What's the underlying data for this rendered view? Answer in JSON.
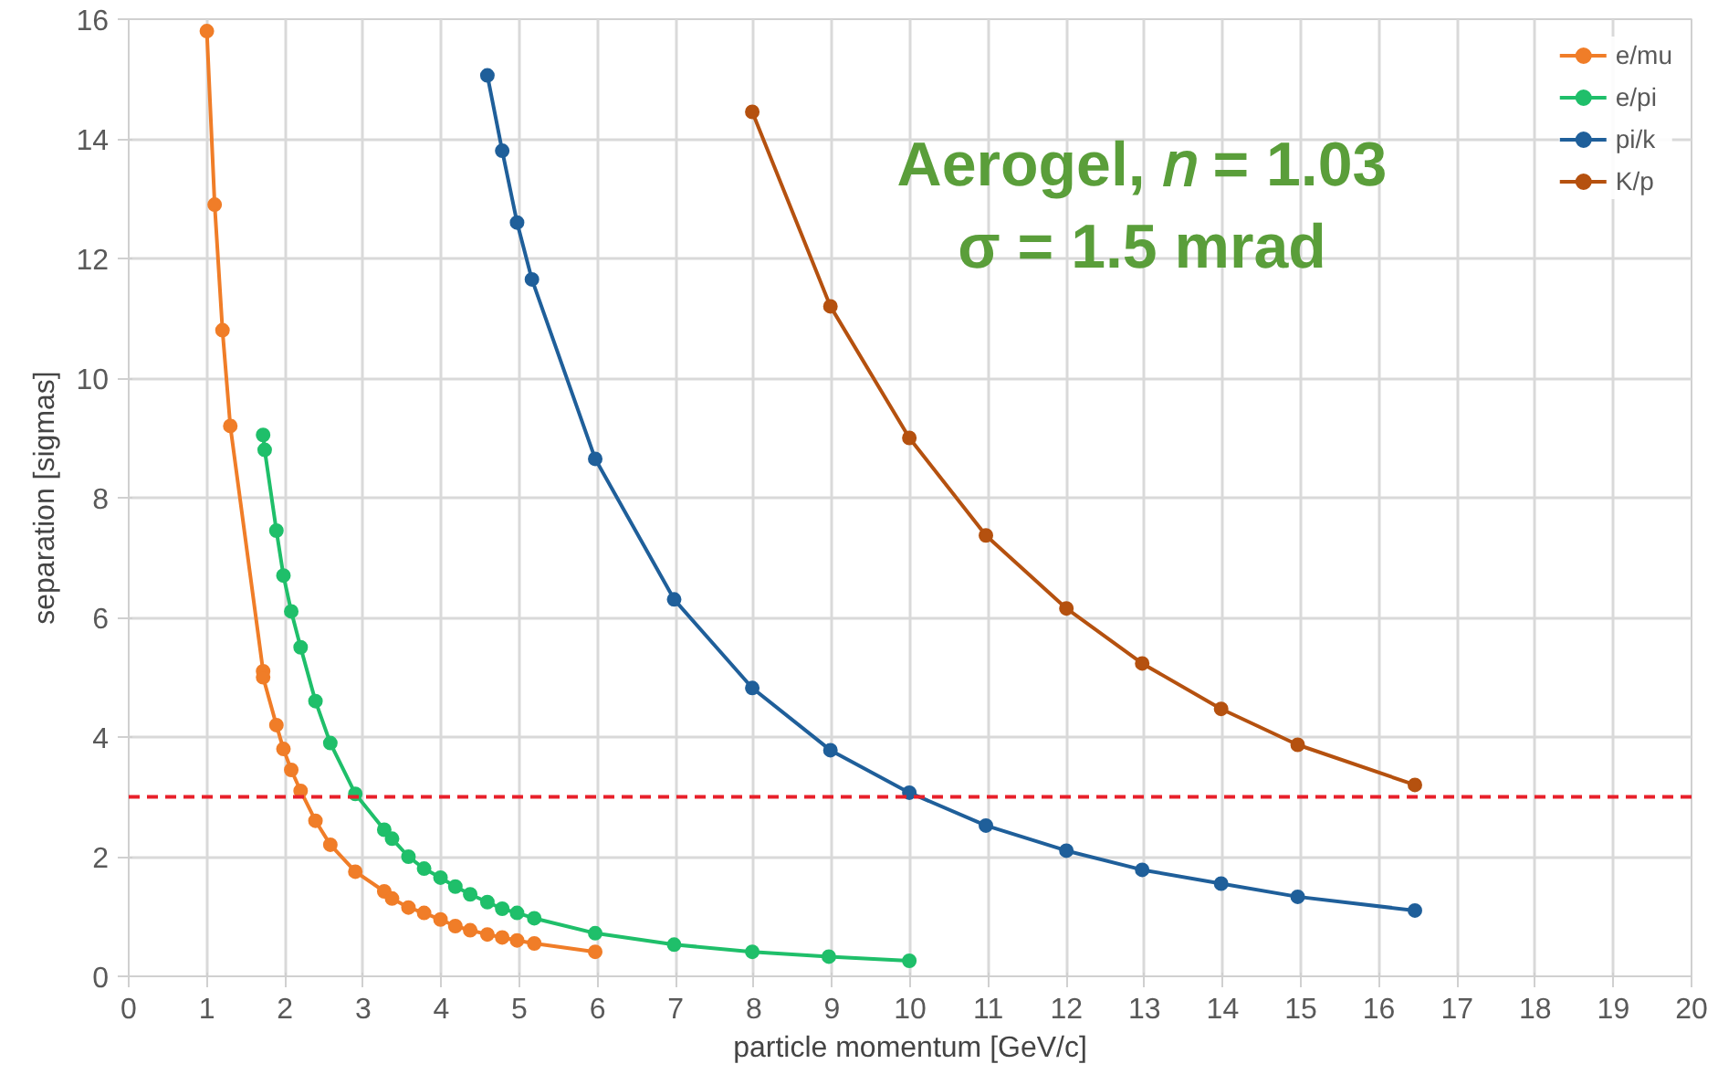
{
  "chart_data": {
    "type": "line",
    "xlabel": "particle momentum [GeV/c]",
    "ylabel": "separation [sigmas]",
    "xlim": [
      0,
      20
    ],
    "ylim": [
      0,
      16
    ],
    "xticks": [
      0,
      1,
      2,
      3,
      4,
      5,
      6,
      7,
      8,
      9,
      10,
      11,
      12,
      13,
      14,
      15,
      16,
      17,
      18,
      19,
      20
    ],
    "yticks": [
      0,
      2,
      4,
      6,
      8,
      10,
      12,
      14,
      16
    ],
    "grid": true,
    "legend": "top right",
    "marker": "circle",
    "line_style": "solid",
    "series": [
      {
        "name": "e/mu",
        "color": "#f07d28",
        "x": [
          1.0,
          1.1,
          1.2,
          1.3,
          1.72,
          1.72,
          1.89,
          1.98,
          2.08,
          2.2,
          2.39,
          2.58,
          2.9,
          3.27,
          3.37,
          3.58,
          3.78,
          3.99,
          4.18,
          4.37,
          4.59,
          4.78,
          4.97,
          5.19,
          5.97
        ],
        "values": [
          15.8,
          12.9,
          10.8,
          9.2,
          5.1,
          5.0,
          4.2,
          3.8,
          3.45,
          3.1,
          2.6,
          2.2,
          1.75,
          1.42,
          1.3,
          1.15,
          1.06,
          0.95,
          0.84,
          0.77,
          0.7,
          0.65,
          0.6,
          0.55,
          0.41
        ]
      },
      {
        "name": "e/pi",
        "color": "#1fbf6a",
        "x": [
          1.72,
          1.74,
          1.89,
          1.98,
          2.08,
          2.2,
          2.39,
          2.58,
          2.9,
          3.27,
          3.37,
          3.58,
          3.78,
          3.99,
          4.18,
          4.37,
          4.59,
          4.78,
          4.97,
          5.19,
          5.97,
          6.98,
          7.98,
          8.96,
          9.99
        ],
        "values": [
          9.05,
          8.8,
          7.45,
          6.7,
          6.1,
          5.5,
          4.6,
          3.9,
          3.05,
          2.45,
          2.3,
          2.0,
          1.8,
          1.65,
          1.5,
          1.37,
          1.24,
          1.13,
          1.06,
          0.97,
          0.72,
          0.53,
          0.41,
          0.33,
          0.26
        ]
      },
      {
        "name": "pi/k",
        "color": "#1f5f9a",
        "x": [
          4.59,
          4.78,
          4.97,
          5.16,
          5.97,
          6.98,
          7.98,
          8.98,
          9.99,
          10.97,
          12.0,
          12.97,
          13.98,
          14.96,
          16.46
        ],
        "values": [
          15.06,
          13.8,
          12.6,
          11.65,
          8.65,
          6.3,
          4.82,
          3.78,
          3.07,
          2.52,
          2.1,
          1.78,
          1.55,
          1.33,
          1.1
        ]
      },
      {
        "name": "K/p",
        "color": "#b5510f",
        "x": [
          7.98,
          8.98,
          9.99,
          10.97,
          12.0,
          12.97,
          13.98,
          14.96,
          16.46
        ],
        "values": [
          14.45,
          11.2,
          9.0,
          7.37,
          6.15,
          5.23,
          4.47,
          3.87,
          3.2
        ]
      }
    ],
    "ref_lines": [
      {
        "axis": "y",
        "value": 3,
        "color": "#e8202a",
        "line_style": "dashed"
      }
    ],
    "annotations": [
      "Aerogel, 𝑛 = 1.03",
      "σ = 1.5 mrad"
    ]
  }
}
